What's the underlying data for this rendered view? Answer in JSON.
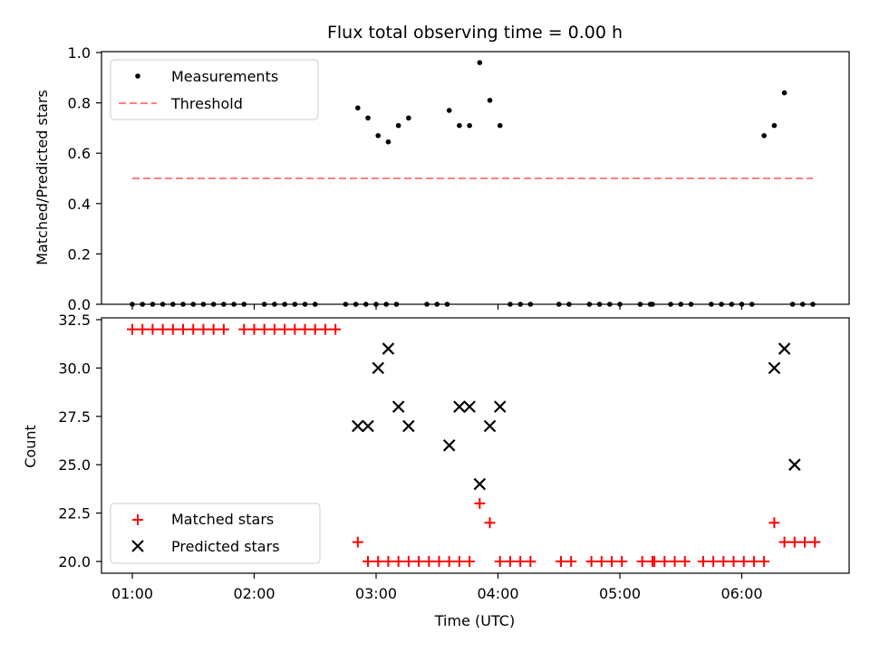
{
  "chart_data": [
    {
      "type": "scatter",
      "title": "Flux total observing time = 0.00 h",
      "xlabel": "",
      "ylabel": "Matched/Predicted stars",
      "ylim": [
        0,
        1.0
      ],
      "yticks": [
        "0.0",
        "0.2",
        "0.4",
        "0.6",
        "0.8",
        "1.0"
      ],
      "yticks_values": [
        0,
        0.2,
        0.4,
        0.6,
        0.8,
        1.0
      ],
      "legend_position": "upper-left",
      "series": [
        {
          "name": "Measurements",
          "marker": "dot",
          "color": "#000000",
          "x": [
            "01:00",
            "01:05",
            "01:10",
            "01:15",
            "01:20",
            "01:25",
            "01:30",
            "01:35",
            "01:40",
            "01:45",
            "01:50",
            "01:55",
            "02:05",
            "02:10",
            "02:15",
            "02:20",
            "02:25",
            "02:30",
            "02:45",
            "02:50",
            "02:55",
            "03:00",
            "03:05",
            "03:10",
            "02:51",
            "02:56",
            "03:01",
            "03:06",
            "03:11",
            "03:16",
            "03:25",
            "03:30",
            "03:35",
            "03:36",
            "03:41",
            "03:46",
            "03:51",
            "03:56",
            "04:01",
            "04:06",
            "04:11",
            "04:16",
            "04:30",
            "04:35",
            "04:45",
            "04:50",
            "04:55",
            "05:00",
            "05:10",
            "05:15",
            "05:16",
            "05:25",
            "05:30",
            "05:35",
            "05:45",
            "05:50",
            "05:55",
            "06:00",
            "06:05",
            "06:11",
            "06:16",
            "06:21",
            "06:25",
            "06:30",
            "06:35"
          ],
          "y": [
            0,
            0,
            0,
            0,
            0,
            0,
            0,
            0,
            0,
            0,
            0,
            0,
            0,
            0,
            0,
            0,
            0,
            0,
            0,
            0,
            0,
            0,
            0,
            0,
            0.78,
            0.74,
            0.67,
            0.645,
            0.71,
            0.74,
            0,
            0,
            0,
            0.77,
            0.71,
            0.71,
            0.96,
            0.81,
            0.71,
            0,
            0,
            0,
            0,
            0,
            0,
            0,
            0,
            0,
            0,
            0,
            0,
            0,
            0,
            0,
            0,
            0,
            0,
            0,
            0,
            0.67,
            0.71,
            0.84,
            0,
            0,
            0
          ]
        },
        {
          "name": "Threshold",
          "style": "dashed",
          "color": "#ff8080",
          "x": [
            "01:00",
            "06:35"
          ],
          "y": [
            0.5,
            0.5
          ]
        }
      ]
    },
    {
      "type": "scatter",
      "title": "",
      "xlabel": "Time (UTC)",
      "ylabel": "Count",
      "ylim": [
        19.5,
        32.5
      ],
      "yticks": [
        "20.0",
        "22.5",
        "25.0",
        "27.5",
        "30.0",
        "32.5"
      ],
      "yticks_values": [
        20.0,
        22.5,
        25.0,
        27.5,
        30.0,
        32.5
      ],
      "xticks": [
        "01:00",
        "02:00",
        "03:00",
        "04:00",
        "05:00",
        "06:00"
      ],
      "legend_position": "lower-left",
      "series": [
        {
          "name": "Matched stars",
          "marker": "plus",
          "color": "#ff0000",
          "x": [
            "01:00",
            "01:05",
            "01:10",
            "01:15",
            "01:20",
            "01:25",
            "01:30",
            "01:35",
            "01:40",
            "01:45",
            "01:55",
            "02:00",
            "02:05",
            "02:10",
            "02:15",
            "02:20",
            "02:25",
            "02:30",
            "02:35",
            "02:40",
            "02:51",
            "02:56",
            "03:01",
            "03:06",
            "03:11",
            "03:16",
            "03:21",
            "03:26",
            "03:31",
            "03:36",
            "03:41",
            "03:46",
            "03:51",
            "03:56",
            "04:01",
            "04:06",
            "04:11",
            "04:16",
            "04:31",
            "04:36",
            "04:46",
            "04:51",
            "04:56",
            "05:01",
            "05:11",
            "05:16",
            "05:17",
            "05:22",
            "05:27",
            "05:32",
            "05:41",
            "05:46",
            "05:51",
            "05:56",
            "06:01",
            "06:06",
            "06:11",
            "06:16",
            "06:21",
            "06:26",
            "06:31",
            "06:36"
          ],
          "y": [
            32,
            32,
            32,
            32,
            32,
            32,
            32,
            32,
            32,
            32,
            32,
            32,
            32,
            32,
            32,
            32,
            32,
            32,
            32,
            32,
            21,
            20,
            20,
            20,
            20,
            20,
            20,
            20,
            20,
            20,
            20,
            20,
            23,
            22,
            20,
            20,
            20,
            20,
            20,
            20,
            20,
            20,
            20,
            20,
            20,
            20,
            20,
            20,
            20,
            20,
            20,
            20,
            20,
            20,
            20,
            20,
            20,
            22,
            21,
            21,
            21,
            21
          ]
        },
        {
          "name": "Predicted stars",
          "marker": "x",
          "color": "#000000",
          "x": [
            "02:51",
            "02:56",
            "03:01",
            "03:06",
            "03:11",
            "03:16",
            "03:36",
            "03:41",
            "03:46",
            "03:51",
            "03:56",
            "04:01",
            "06:16",
            "06:21",
            "06:26"
          ],
          "y": [
            27,
            27,
            30,
            31,
            28,
            27,
            26,
            28,
            28,
            24,
            27,
            28,
            30,
            31,
            25
          ]
        }
      ]
    }
  ],
  "legend": {
    "top": [
      "Measurements",
      "Threshold"
    ],
    "bottom": [
      "Matched stars",
      "Predicted stars"
    ]
  },
  "texts": {
    "title": "Flux total observing time = 0.00 h",
    "ylabel_top": "Matched/Predicted stars",
    "ylabel_bottom": "Count",
    "xlabel": "Time (UTC)"
  }
}
